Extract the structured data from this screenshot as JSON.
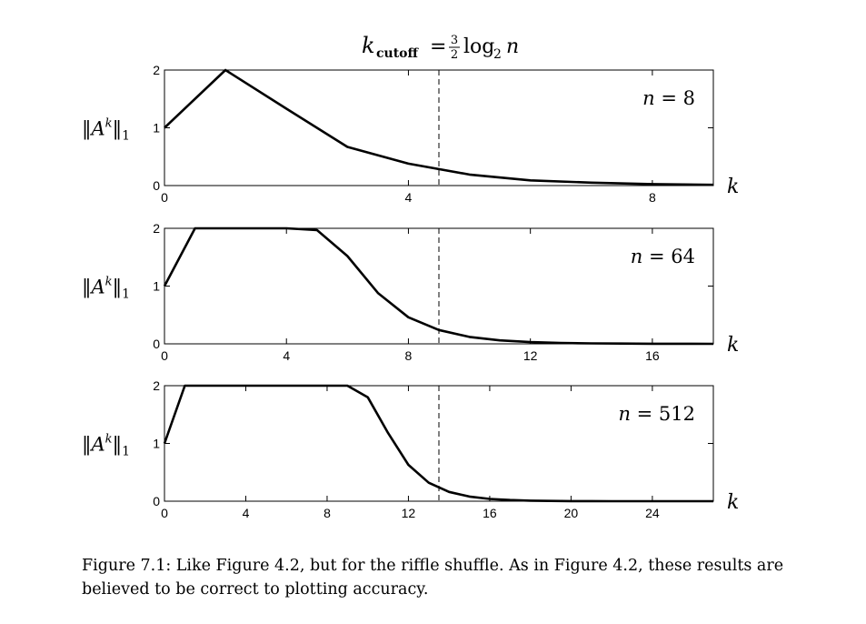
{
  "figure": {
    "title_parts": {
      "lhs_var": "k",
      "lhs_sub": "cutoff",
      "eq": "=",
      "frac_num": "3",
      "frac_den": "2",
      "func": "log",
      "func_sub": "2",
      "arg": "n"
    },
    "y_label": {
      "norm": "‖",
      "var": "A",
      "sup": "k",
      "sub": "1"
    },
    "x_label": "k",
    "caption": "Figure 7.1: Like Figure 4.2, but for the riffle shuffle. As in Figure 4.2, these results are believed to be correct to plotting accuracy."
  },
  "chart_data": [
    {
      "type": "line",
      "annotation": "n = 8",
      "xlim": [
        0,
        9
      ],
      "ylim": [
        0,
        2
      ],
      "xticks": [
        0,
        4,
        8
      ],
      "yticks": [
        0,
        1,
        2
      ],
      "cutoff_x": 4.5,
      "series": [
        {
          "x": [
            0,
            1,
            2,
            3,
            4,
            5,
            6,
            7,
            8,
            9
          ],
          "y": [
            1.0,
            2.0,
            1.33,
            0.67,
            0.38,
            0.19,
            0.09,
            0.05,
            0.025,
            0.012
          ]
        }
      ]
    },
    {
      "type": "line",
      "annotation": "n = 64",
      "xlim": [
        0,
        18
      ],
      "ylim": [
        0,
        2
      ],
      "xticks": [
        0,
        4,
        8,
        12,
        16
      ],
      "yticks": [
        0,
        1,
        2
      ],
      "cutoff_x": 9,
      "series": [
        {
          "x": [
            0,
            1,
            2,
            3,
            4,
            5,
            6,
            7,
            8,
            9,
            10,
            11,
            12,
            13,
            14,
            15,
            16,
            17,
            18
          ],
          "y": [
            1.0,
            2.0,
            2.0,
            2.0,
            2.0,
            1.97,
            1.52,
            0.88,
            0.46,
            0.24,
            0.12,
            0.06,
            0.03,
            0.015,
            0.008,
            0.004,
            0.002,
            0.001,
            0.0
          ]
        }
      ]
    },
    {
      "type": "line",
      "annotation": "n = 512",
      "xlim": [
        0,
        27
      ],
      "ylim": [
        0,
        2
      ],
      "xticks": [
        0,
        4,
        8,
        12,
        16,
        20,
        24
      ],
      "yticks": [
        0,
        1,
        2
      ],
      "cutoff_x": 13.5,
      "series": [
        {
          "x": [
            0,
            1,
            2,
            3,
            4,
            5,
            6,
            7,
            8,
            9,
            10,
            11,
            12,
            13,
            14,
            15,
            16,
            17,
            18,
            19,
            20,
            21,
            22,
            23,
            24,
            25,
            26,
            27
          ],
          "y": [
            1.0,
            2.0,
            2.0,
            2.0,
            2.0,
            2.0,
            2.0,
            2.0,
            2.0,
            2.0,
            1.8,
            1.18,
            0.63,
            0.32,
            0.16,
            0.08,
            0.04,
            0.02,
            0.01,
            0.005,
            0.002,
            0.001,
            0.0,
            0.0,
            0.0,
            0.0,
            0.0,
            0.0
          ]
        }
      ]
    }
  ]
}
